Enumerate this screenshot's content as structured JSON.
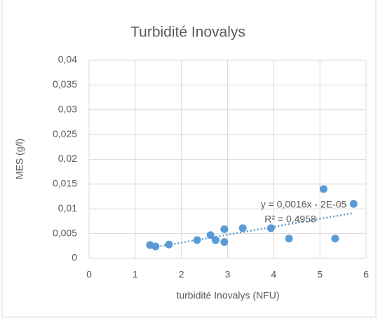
{
  "chart_data": {
    "type": "scatter",
    "title": "Turbidité Inovalys",
    "x_label": "turbidité Inovalys (NFU)",
    "y_label": "MES (g/l)",
    "series": [
      {
        "name": "MES",
        "color": "#5b9bd5",
        "x": [
          1.32,
          1.44,
          1.73,
          2.34,
          2.63,
          2.74,
          2.93,
          2.93,
          3.33,
          3.94,
          4.33,
          5.08,
          5.33,
          5.73
        ],
        "values": [
          0.0027,
          0.0024,
          0.0028,
          0.0037,
          0.0047,
          0.0037,
          0.0059,
          0.0033,
          0.0061,
          0.0061,
          0.004,
          0.014,
          0.004,
          0.011
        ]
      }
    ],
    "trendline": {
      "slope": 0.0016,
      "intercept": -2e-05,
      "equation": "y = 0,0016x - 2E-05",
      "r2_label": "R² = 0,4958"
    },
    "xlim": [
      0,
      6
    ],
    "xticks": [
      0,
      1,
      2,
      3,
      4,
      5,
      6
    ],
    "ylim": [
      0,
      0.04
    ],
    "yticks": [
      0,
      {
        "value": 0.005,
        "label": "0,005"
      },
      {
        "value": 0.01,
        "label": "0,01"
      },
      {
        "value": 0.015,
        "label": "0,015"
      },
      {
        "value": 0.02,
        "label": "0,02"
      },
      {
        "value": 0.025,
        "label": "0,025"
      },
      {
        "value": 0.03,
        "label": "0,03"
      },
      {
        "value": 0.035,
        "label": "0,035"
      },
      {
        "value": 0.04,
        "label": "0,04"
      }
    ],
    "grid": true
  }
}
